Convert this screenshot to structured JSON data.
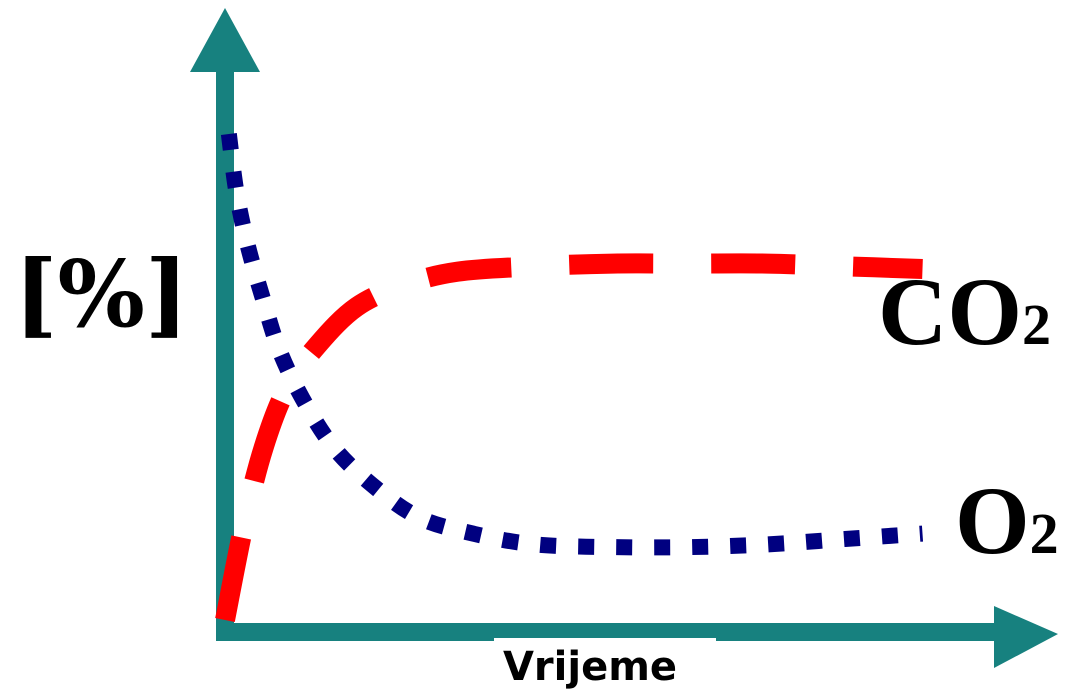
{
  "chart_data": {
    "type": "line",
    "title": "",
    "xlabel": "Vrijeme",
    "ylabel": "[%]",
    "grid": false,
    "legend": "none",
    "xlim": [
      0,
      10
    ],
    "ylim": [
      0,
      10
    ],
    "series": [
      {
        "name": "CO2",
        "name_main": "CO",
        "name_sub": "2",
        "color": "#ff0000",
        "style": "dashed",
        "x": [
          0.0,
          0.25,
          0.5,
          0.8,
          1.2,
          1.7,
          2.3,
          3.0,
          4.0,
          5.0,
          6.0,
          7.0,
          8.0,
          9.0
        ],
        "y": [
          0.0,
          1.8,
          3.2,
          4.3,
          5.1,
          5.8,
          6.2,
          6.45,
          6.55,
          6.6,
          6.6,
          6.6,
          6.55,
          6.5
        ]
      },
      {
        "name": "O2",
        "name_main": "O",
        "name_sub": "2",
        "color": "#000080",
        "style": "dotted",
        "x": [
          0.05,
          0.15,
          0.3,
          0.5,
          0.7,
          1.0,
          1.4,
          1.9,
          2.5,
          3.2,
          4.0,
          5.0,
          6.0,
          7.0,
          8.0,
          9.0
        ],
        "y": [
          9.0,
          7.9,
          6.9,
          5.9,
          5.0,
          4.1,
          3.2,
          2.5,
          1.9,
          1.6,
          1.4,
          1.35,
          1.35,
          1.4,
          1.5,
          1.6
        ]
      }
    ]
  },
  "colors": {
    "axis": "#17817f",
    "co2": "#ff0000",
    "o2": "#000080"
  }
}
